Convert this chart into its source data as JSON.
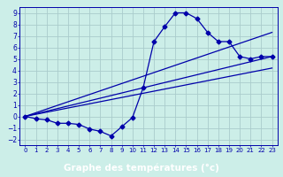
{
  "xlabel": "Graphe des températures (°c)",
  "bg_color": "#cceee8",
  "grid_color": "#aacccc",
  "line_color": "#0000aa",
  "xlabel_bg": "#2244aa",
  "xlabel_fg": "#ffffff",
  "xlim": [
    -0.5,
    23.5
  ],
  "ylim": [
    -2.5,
    9.5
  ],
  "xticks": [
    0,
    1,
    2,
    3,
    4,
    5,
    6,
    7,
    8,
    9,
    10,
    11,
    12,
    13,
    14,
    15,
    16,
    17,
    18,
    19,
    20,
    21,
    22,
    23
  ],
  "yticks": [
    -2,
    -1,
    0,
    1,
    2,
    3,
    4,
    5,
    6,
    7,
    8,
    9
  ],
  "curve_x": [
    0,
    1,
    2,
    3,
    4,
    5,
    6,
    7,
    8,
    9,
    10,
    11,
    12,
    13,
    14,
    15,
    16,
    17,
    18,
    19,
    20,
    21,
    22,
    23
  ],
  "curve_y": [
    0.0,
    -0.2,
    -0.3,
    -0.6,
    -0.6,
    -0.7,
    -1.1,
    -1.3,
    -1.7,
    -0.9,
    -0.1,
    2.5,
    6.5,
    7.8,
    9.0,
    9.0,
    8.5,
    7.3,
    6.5,
    6.5,
    5.2,
    5.0,
    5.2,
    5.2
  ],
  "line1_x": [
    0,
    23
  ],
  "line1_y": [
    0.0,
    7.3
  ],
  "line2_x": [
    0,
    23
  ],
  "line2_y": [
    0.0,
    5.2
  ],
  "line3_x": [
    0,
    23
  ],
  "line3_y": [
    0.0,
    4.2
  ],
  "marker": "D",
  "markersize": 2.5,
  "linewidth": 0.9
}
